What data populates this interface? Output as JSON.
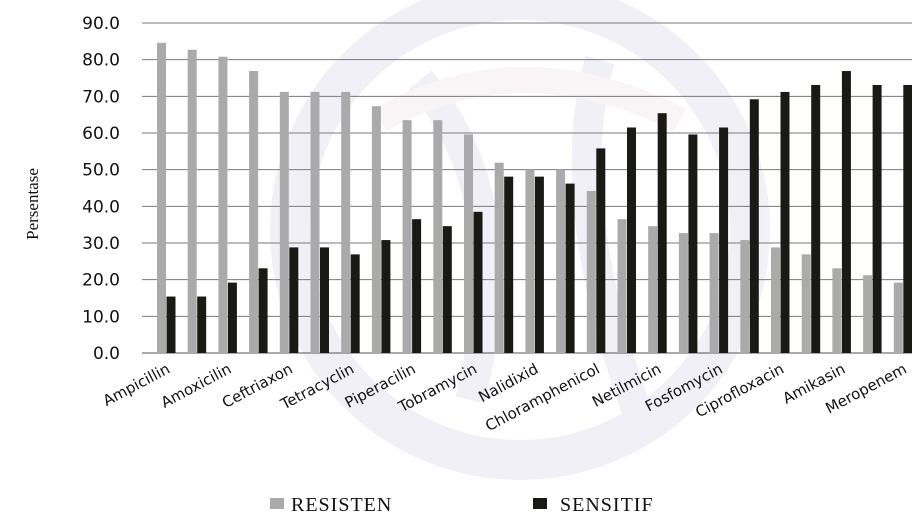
{
  "chart_data": {
    "type": "bar",
    "title": "",
    "xlabel": "",
    "ylabel": "Persentase",
    "ylim": [
      0,
      90
    ],
    "yticks": [
      "0.0",
      "10.0",
      "20.0",
      "30.0",
      "40.0",
      "50.0",
      "60.0",
      "70.0",
      "80.0",
      "90.0"
    ],
    "grid": true,
    "legend_position": "bottom",
    "categories": [
      "Ampicillin",
      "Amoxicilin",
      "Ceftriaxon",
      "Tetracyclin",
      "Piperacilin",
      "Tobramycin",
      "Nalidixid",
      "Chloramphenicol",
      "Netilmicin",
      "Fosfomycin",
      "Ciprofloxacin",
      "Amikasin",
      "Meropenem"
    ],
    "bar_groups": [
      {
        "label_index": 0,
        "resisten": 84.6,
        "sensitif": 15.4
      },
      {
        "label_index": null,
        "resisten": 82.7,
        "sensitif": 15.4
      },
      {
        "label_index": 1,
        "resisten": 80.8,
        "sensitif": 19.2
      },
      {
        "label_index": null,
        "resisten": 76.9,
        "sensitif": 23.1
      },
      {
        "label_index": 2,
        "resisten": 71.2,
        "sensitif": 28.8
      },
      {
        "label_index": null,
        "resisten": 71.2,
        "sensitif": 28.8
      },
      {
        "label_index": 3,
        "resisten": 71.2,
        "sensitif": 26.9
      },
      {
        "label_index": null,
        "resisten": 67.3,
        "sensitif": 30.8
      },
      {
        "label_index": 4,
        "resisten": 63.5,
        "sensitif": 36.5
      },
      {
        "label_index": null,
        "resisten": 63.5,
        "sensitif": 34.6
      },
      {
        "label_index": 5,
        "resisten": 59.6,
        "sensitif": 38.5
      },
      {
        "label_index": null,
        "resisten": 51.9,
        "sensitif": 48.1
      },
      {
        "label_index": 6,
        "resisten": 50.0,
        "sensitif": 48.1
      },
      {
        "label_index": null,
        "resisten": 50.0,
        "sensitif": 46.2
      },
      {
        "label_index": 7,
        "resisten": 44.2,
        "sensitif": 55.8
      },
      {
        "label_index": null,
        "resisten": 36.5,
        "sensitif": 61.5
      },
      {
        "label_index": 8,
        "resisten": 34.6,
        "sensitif": 65.4
      },
      {
        "label_index": null,
        "resisten": 32.7,
        "sensitif": 59.6
      },
      {
        "label_index": 9,
        "resisten": 32.7,
        "sensitif": 61.5
      },
      {
        "label_index": null,
        "resisten": 30.8,
        "sensitif": 69.2
      },
      {
        "label_index": 10,
        "resisten": 28.8,
        "sensitif": 71.2
      },
      {
        "label_index": null,
        "resisten": 26.9,
        "sensitif": 73.1
      },
      {
        "label_index": 11,
        "resisten": 23.1,
        "sensitif": 76.9
      },
      {
        "label_index": null,
        "resisten": 21.2,
        "sensitif": 73.1
      },
      {
        "label_index": 12,
        "resisten": 19.2,
        "sensitif": 73.1
      }
    ],
    "series": [
      {
        "key": "resisten",
        "name": "RESISTEN",
        "color": "#aaaaaa"
      },
      {
        "key": "sensitif",
        "name": "SENSITIF",
        "color": "#1a1a14"
      }
    ]
  }
}
